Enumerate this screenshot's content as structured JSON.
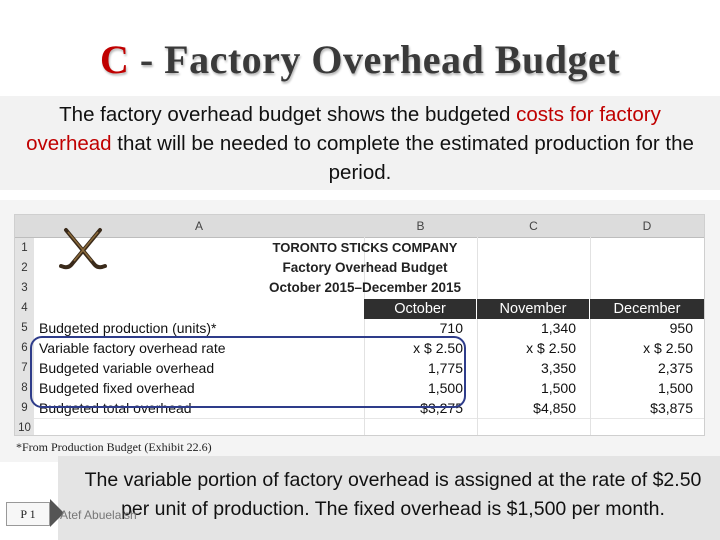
{
  "slide": {
    "title_letter": "C",
    "title_rest": " - Factory Overhead Budget",
    "intro_part1": "The factory overhead budget shows the budgeted ",
    "intro_highlight": "costs for factory overhead",
    "intro_part2": " that will be needed to complete the estimated production for the period.",
    "bottom_text": "The variable portion of factory overhead is assigned at the rate of $2.50 per unit of production. The fixed overhead is $1,500 per month.",
    "page_label": "P 1",
    "author": "Atef Abuelaish",
    "footnote": "*From Production Budget (Exhibit 22.6)"
  },
  "spreadsheet": {
    "columns": [
      "A",
      "B",
      "C",
      "D"
    ],
    "row_numbers": [
      "1",
      "2",
      "3",
      "4",
      "5",
      "6",
      "7",
      "8",
      "9",
      "10"
    ],
    "company": "TORONTO STICKS COMPANY",
    "subtitle": "Factory Overhead Budget",
    "period": "October 2015–December 2015",
    "months": [
      "October",
      "November",
      "December"
    ],
    "rows": [
      {
        "label": "Budgeted production (units)*",
        "values": [
          "710",
          "1,340",
          "950"
        ]
      },
      {
        "label": "Variable factory overhead rate",
        "values": [
          "x $  2.50",
          "x $  2.50",
          "x $  2.50"
        ]
      },
      {
        "label": "Budgeted variable overhead",
        "values": [
          "1,775",
          "3,350",
          "2,375"
        ]
      },
      {
        "label": "Budgeted fixed overhead",
        "values": [
          "1,500",
          "1,500",
          "1,500"
        ]
      },
      {
        "label": "Budgeted total overhead",
        "values": [
          "$3,275",
          "$4,850",
          "$3,875"
        ]
      }
    ]
  },
  "colors": {
    "accent_red": "#c00000",
    "highlight_border": "#2e3c8a",
    "header_dark": "#2f2f2f"
  },
  "icons": [
    "hockey-sticks-icon",
    "arrow-right-icon"
  ]
}
